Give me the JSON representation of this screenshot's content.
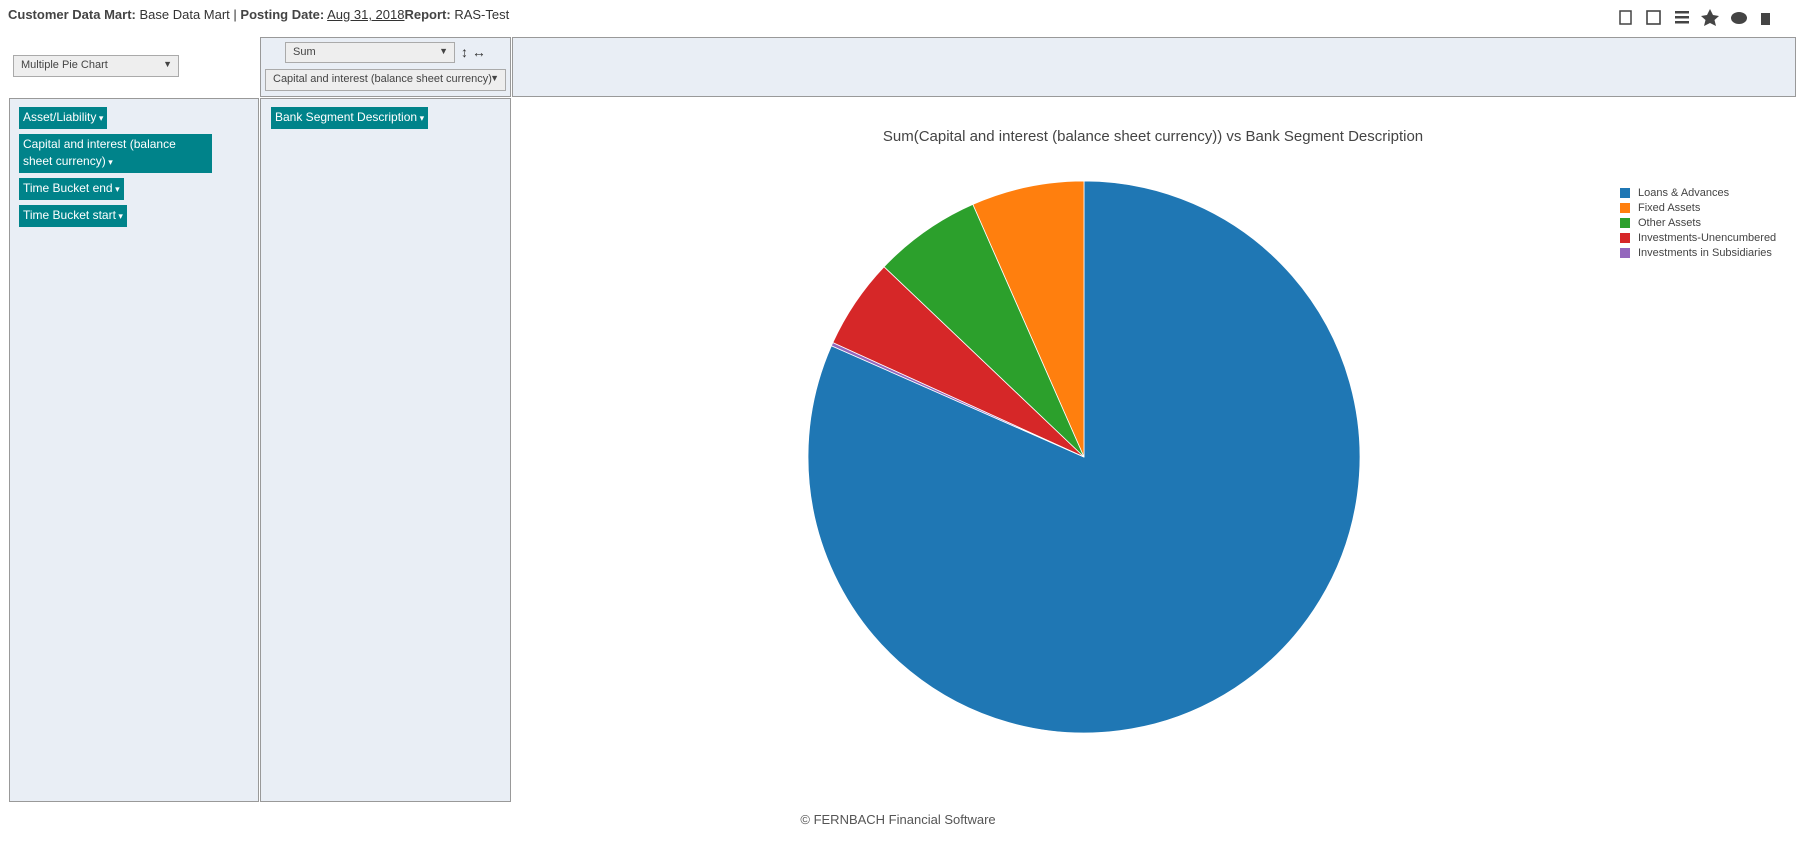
{
  "header": {
    "app_label": "Customer Data Mart:",
    "mart": "Base Data Mart |",
    "posting_label": "Posting Date:",
    "posting_date": "Aug 31, 2018",
    "report_label": "Report:",
    "report": "RAS-Test"
  },
  "controls": {
    "renderer": "Multiple Pie Chart",
    "aggregator": "Sum",
    "aggregate_field": "Capital and interest (balance sheet currency)"
  },
  "row_fields": [
    "Asset/Liability",
    "Capital and interest (balance sheet currency)",
    "Time Bucket end",
    "Time Bucket start"
  ],
  "col_fields": [
    "Bank Segment Description"
  ],
  "chart_data": {
    "type": "pie",
    "title": "Sum(Capital and interest (balance sheet currency)) vs Bank Segment Description",
    "categories": [
      "Loans & Advances",
      "Fixed Assets",
      "Other Assets",
      "Investments-Unencumbered",
      "Investments in Subsidiaries"
    ],
    "values": [
      81.6,
      6.6,
      6.3,
      5.3,
      0.2
    ],
    "colors": [
      "#1f77b4",
      "#ff7f0e",
      "#2ca02c",
      "#d62728",
      "#9467bd"
    ],
    "legend": "top-right"
  },
  "footer": "© FERNBACH Financial Software"
}
